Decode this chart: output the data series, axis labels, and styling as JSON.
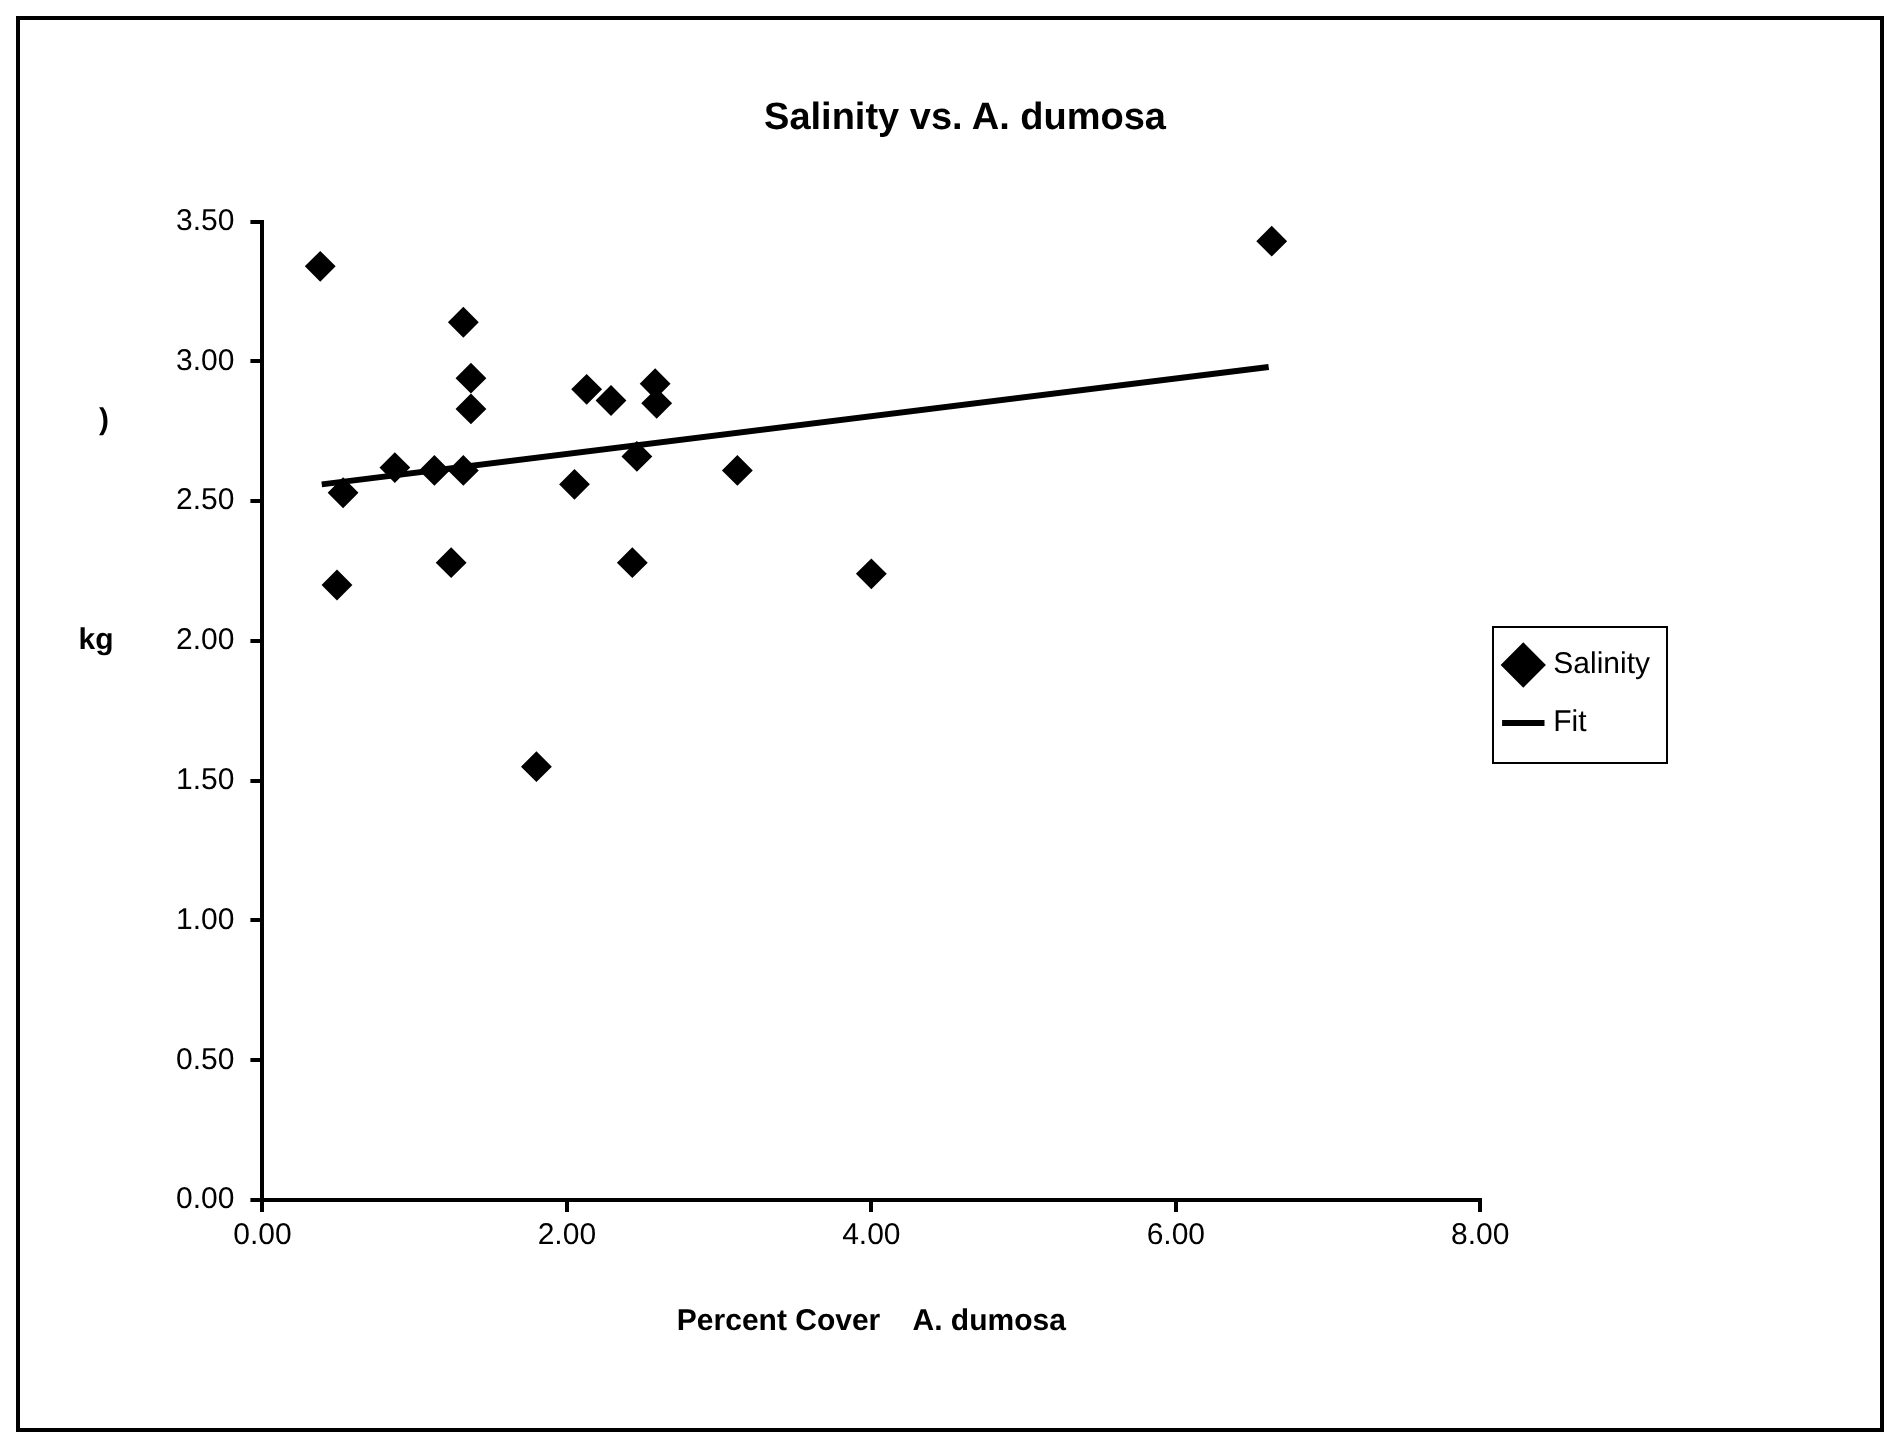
{
  "chart_data": {
    "type": "scatter",
    "title": "Salinity vs. A. dumosa",
    "xlabel": "Percent Cover    A. dumosa",
    "ylabel": "kg",
    "annotations": [
      ")"
    ],
    "xlim": [
      0,
      8
    ],
    "xticks": [
      {
        "value": 0,
        "label": "0.00"
      },
      {
        "value": 2,
        "label": "2.00"
      },
      {
        "value": 4,
        "label": "4.00"
      },
      {
        "value": 6,
        "label": "6.00"
      },
      {
        "value": 8,
        "label": "8.00"
      }
    ],
    "ylim": [
      0,
      3.5
    ],
    "yticks": [
      {
        "value": 0,
        "label": "0.00"
      },
      {
        "value": 0.5,
        "label": "0.50"
      },
      {
        "value": 1,
        "label": "1.00"
      },
      {
        "value": 1.5,
        "label": "1.50"
      },
      {
        "value": 2,
        "label": "2.00"
      },
      {
        "value": 2.5,
        "label": "2.50"
      },
      {
        "value": 3,
        "label": "3.00"
      },
      {
        "value": 3.5,
        "label": "3.50"
      }
    ],
    "legend": "right",
    "marker": "diamond",
    "series": [
      {
        "name": "Salinity",
        "color": "#000000",
        "x": [
          0.38,
          1.32,
          1.37,
          1.37,
          2.13,
          2.29,
          2.58,
          2.59,
          0.53,
          0.87,
          1.13,
          1.32,
          2.05,
          2.46,
          3.12,
          0.49,
          1.24,
          2.43,
          4.0,
          1.8,
          6.63
        ],
        "values": [
          3.34,
          3.14,
          2.94,
          2.83,
          2.9,
          2.86,
          2.92,
          2.85,
          2.53,
          2.62,
          2.61,
          2.61,
          2.56,
          2.66,
          2.61,
          2.2,
          2.28,
          2.28,
          2.24,
          1.55,
          3.43
        ]
      },
      {
        "name": "Fit",
        "type": "line",
        "color": "#000000",
        "marker": "none",
        "x": [
          0.39,
          6.61
        ],
        "values": [
          2.56,
          2.98
        ]
      }
    ]
  }
}
